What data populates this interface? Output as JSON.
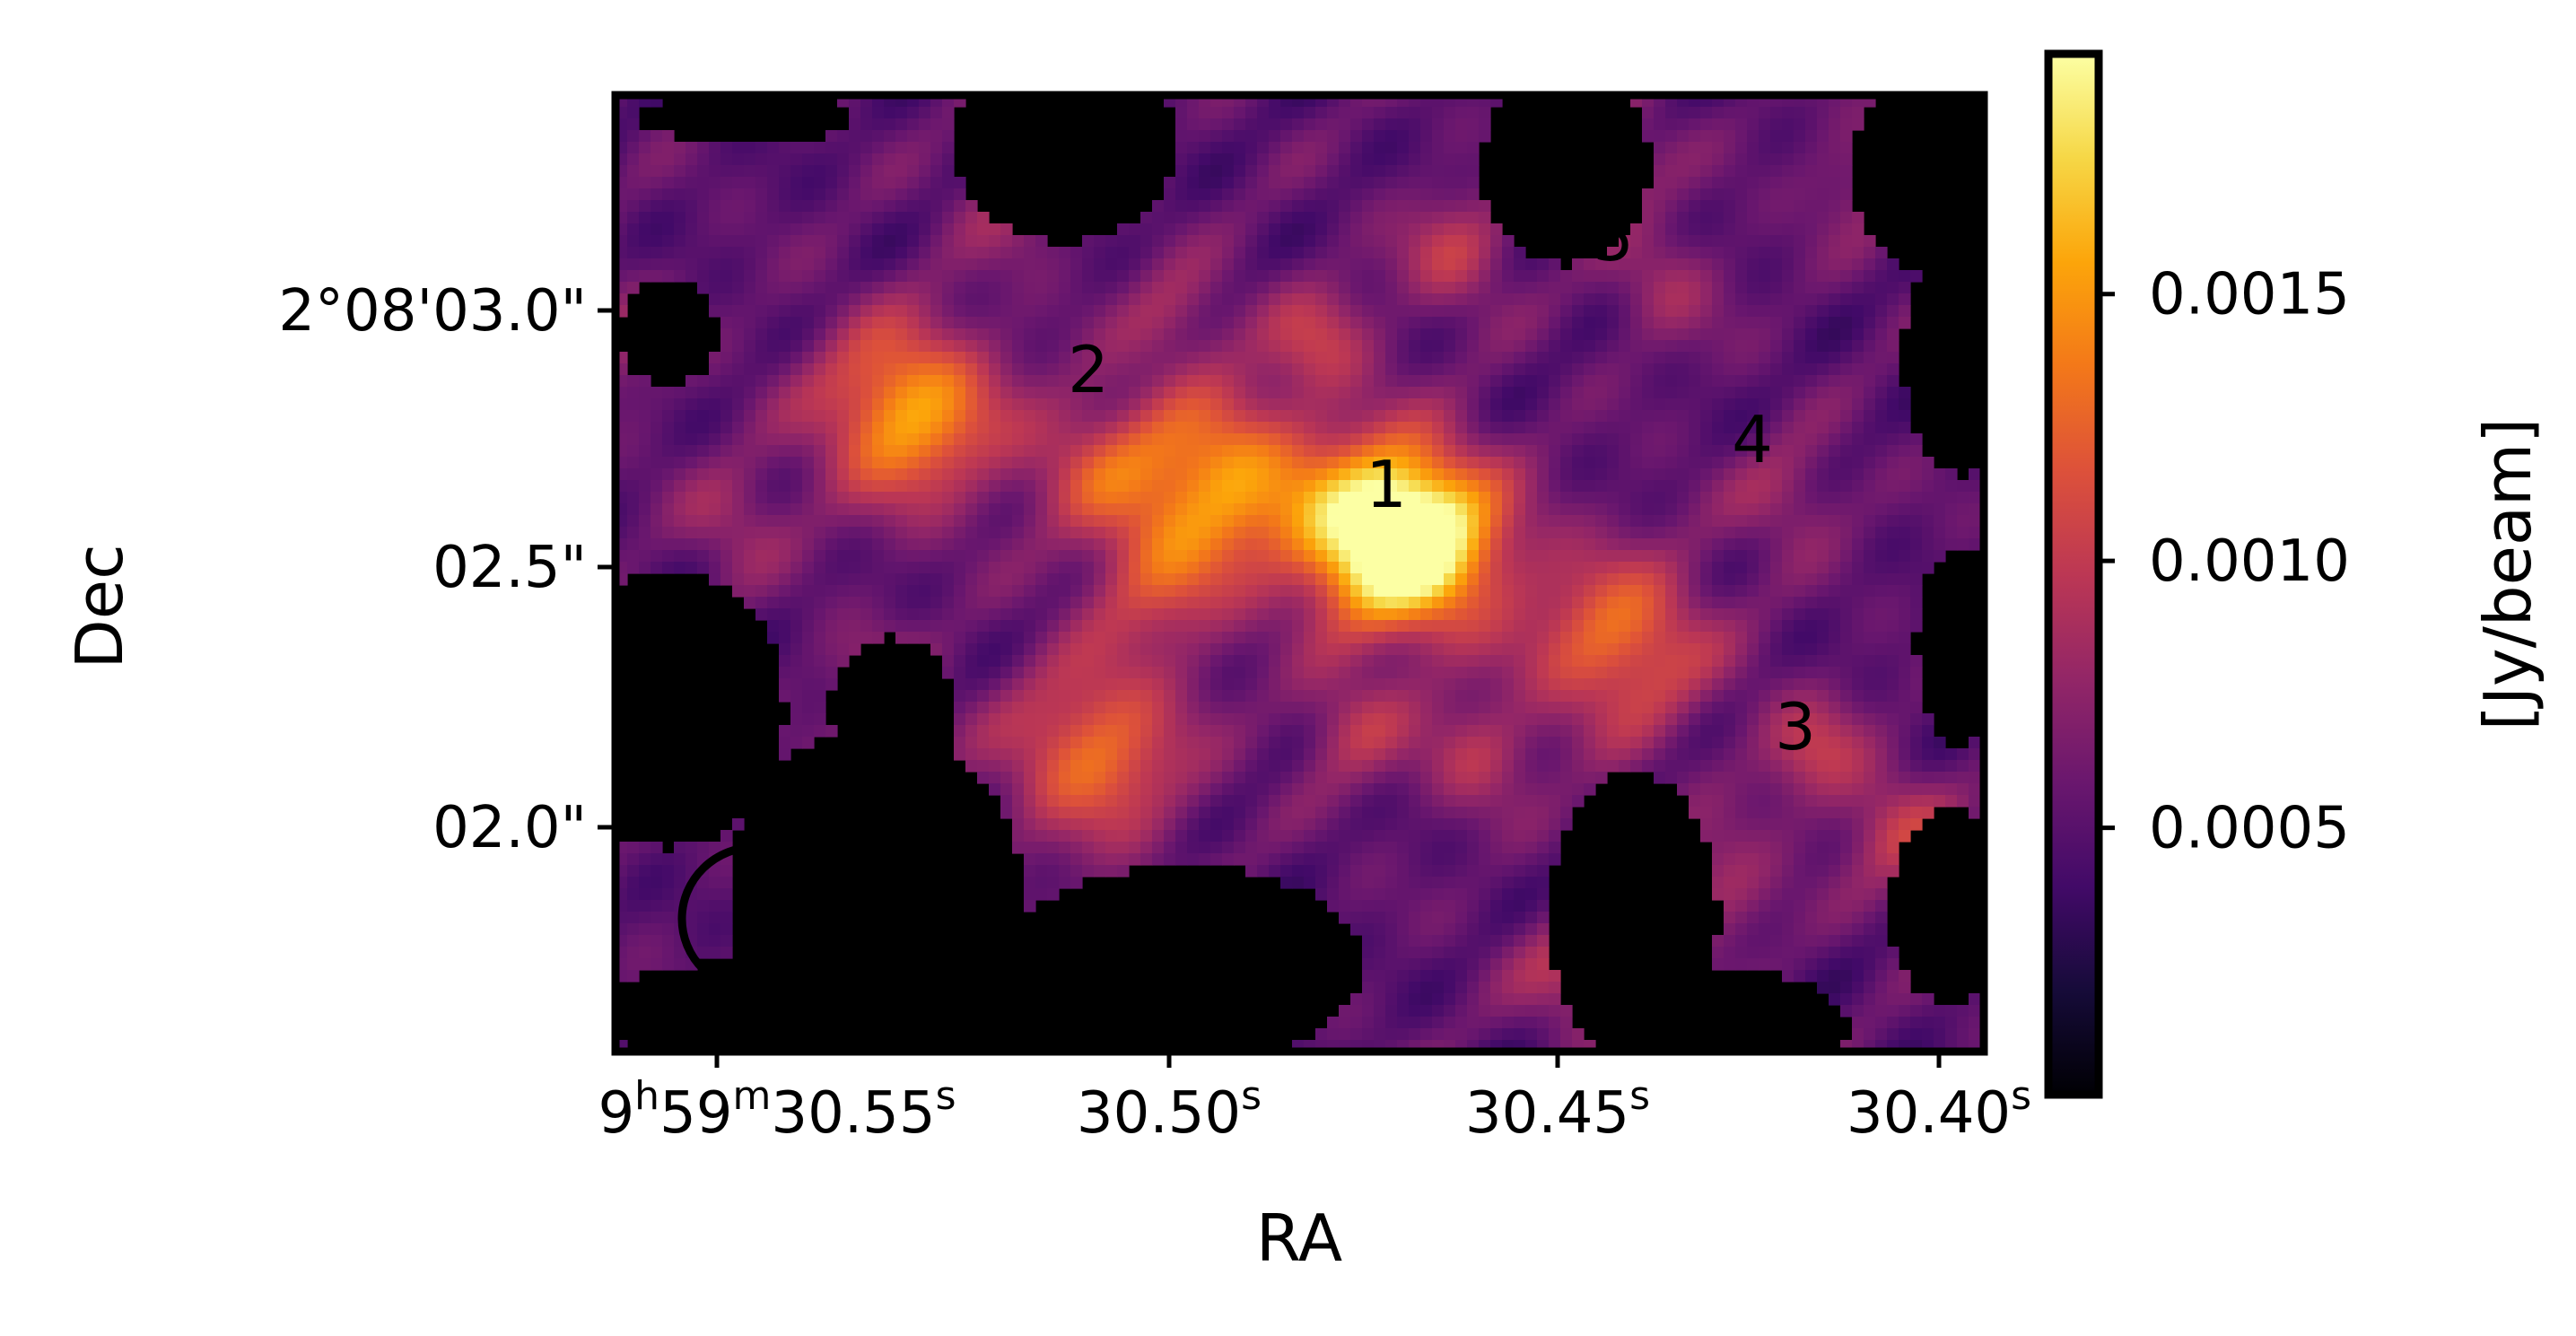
{
  "chart_data": {
    "type": "heatmap",
    "title": "",
    "xlabel": "RA",
    "ylabel": "Dec",
    "colormap": "inferno",
    "colorbar": {
      "label": "[Jy/beam]",
      "range": [
        0.0,
        0.00195
      ],
      "tick_values": [
        0.0005,
        0.001,
        0.0015
      ],
      "tick_labels": [
        "0.0005",
        "0.0010",
        "0.0015"
      ]
    },
    "x_ticks": [
      {
        "label_parts": [
          "9",
          "h",
          "59",
          "m",
          "30.55",
          "s"
        ]
      },
      {
        "label_parts": [
          "30.50",
          "s"
        ]
      },
      {
        "label_parts": [
          "30.45",
          "s"
        ]
      },
      {
        "label_parts": [
          "30.40",
          "s"
        ]
      }
    ],
    "y_ticks": [
      {
        "label": "2°08'03.0\""
      },
      {
        "label": "02.5\""
      },
      {
        "label": "02.0\""
      }
    ],
    "sources": [
      {
        "label": "1",
        "flux": 0.00195
      },
      {
        "label": "2",
        "flux": 0.00135
      },
      {
        "label": "3",
        "flux": 0.0008
      },
      {
        "label": "4",
        "flux": 0.00075
      },
      {
        "label": "5",
        "flux": 0.0007
      }
    ],
    "emission_peaks": [
      {
        "ra_s": 30.4665,
        "dec_arcsec": 2.58,
        "peak": 0.0013
      },
      {
        "ra_s": 30.4615,
        "dec_arcsec": 2.56,
        "peak": 0.00085
      },
      {
        "ra_s": 30.5275,
        "dec_arcsec": 2.81,
        "peak": 0.00105
      },
      {
        "ra_s": 30.4875,
        "dec_arcsec": 2.68,
        "peak": 0.00095
      },
      {
        "ra_s": 30.503,
        "dec_arcsec": 2.71,
        "peak": 0.0005
      },
      {
        "ra_s": 30.4365,
        "dec_arcsec": 2.37,
        "peak": 0.0008
      },
      {
        "ra_s": 30.5035,
        "dec_arcsec": 2.16,
        "peak": 0.0008
      },
      {
        "ra_s": 30.4955,
        "dec_arcsec": 2.48,
        "peak": 0.0005
      },
      {
        "ra_s": 30.4575,
        "dec_arcsec": 3.12,
        "peak": 0.00045
      },
      {
        "ra_s": 30.475,
        "dec_arcsec": 2.95,
        "peak": 0.00045
      },
      {
        "ra_s": 30.4115,
        "dec_arcsec": 2.16,
        "peak": 0.00045
      },
      {
        "ra_s": 30.4005,
        "dec_arcsec": 2.0,
        "peak": 0.00045
      },
      {
        "ra_s": 30.4545,
        "dec_arcsec": 2.15,
        "peak": 0.0004
      },
      {
        "ra_s": 30.4425,
        "dec_arcsec": 1.74,
        "peak": 0.0004
      },
      {
        "ra_s": 30.415,
        "dec_arcsec": 2.65,
        "peak": 0.0003
      },
      {
        "ra_s": 30.4305,
        "dec_arcsec": 3.05,
        "peak": 0.0003
      },
      {
        "ra_s": 30.565,
        "dec_arcsec": 2.95,
        "peak": 0.0003
      },
      {
        "ra_s": 30.55,
        "dec_arcsec": 2.6,
        "peak": 0.0003
      },
      {
        "ra_s": 30.4705,
        "dec_arcsec": 2.2,
        "peak": 0.0004
      },
      {
        "ra_s": 30.5145,
        "dec_arcsec": 3.2,
        "peak": 0.00025
      },
      {
        "ra_s": 30.4365,
        "dec_arcsec": 3.3,
        "peak": 0.00025
      },
      {
        "ra_s": 30.4935,
        "dec_arcsec": 3.0,
        "peak": 0.0003
      },
      {
        "ra_s": 30.4055,
        "dec_arcsec": 3.25,
        "peak": 0.00025
      },
      {
        "ra_s": 30.5315,
        "dec_arcsec": 2.3,
        "peak": 0.00025
      },
      {
        "ra_s": 30.4235,
        "dec_arcsec": 1.9,
        "peak": 0.00035
      }
    ],
    "beam_shown": true
  }
}
